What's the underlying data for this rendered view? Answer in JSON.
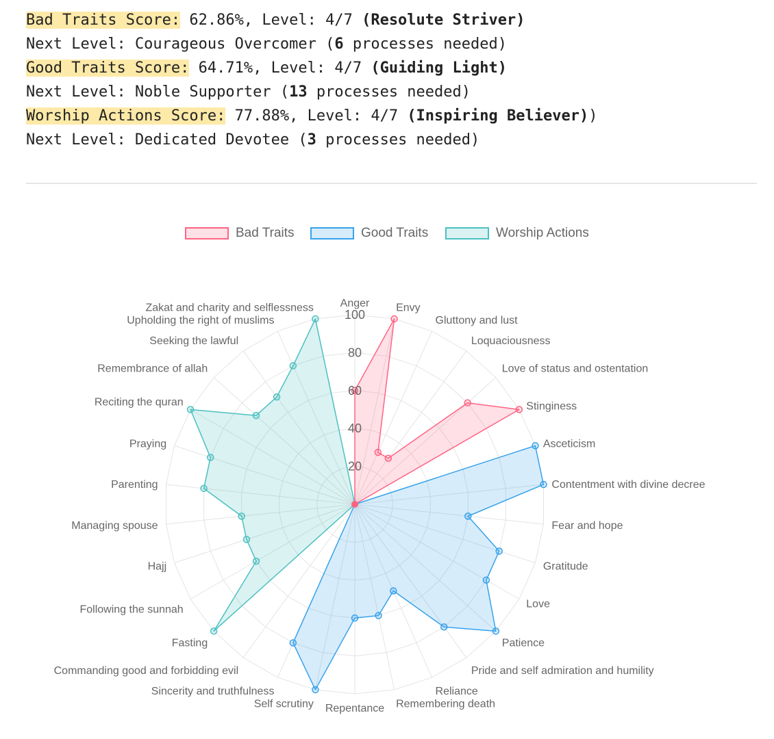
{
  "scores": {
    "bad": {
      "label": "Bad Traits Score:",
      "value": " 62.86%, Level: 4/7 ",
      "level_name": "(Resolute Striver)",
      "suffix": "",
      "next_prefix": "Next Level: Courageous Overcomer (",
      "next_count": "6",
      "next_suffix": " processes needed)"
    },
    "good": {
      "label": "Good Traits Score:",
      "value": " 64.71%, Level: 4/7 ",
      "level_name": "(Guiding Light)",
      "suffix": "",
      "next_prefix": "Next Level: Noble Supporter (",
      "next_count": "13",
      "next_suffix": " processes needed)"
    },
    "worship": {
      "label": "Worship Actions Score:",
      "value": " 77.88%, Level: 4/7 ",
      "level_name": "(Inspiring Believer)",
      "suffix": ")",
      "next_prefix": "Next Level: Dedicated Devotee (",
      "next_count": "3",
      "next_suffix": " processes needed)"
    }
  },
  "colors": {
    "bad": "#ff6384",
    "good": "#36a2eb",
    "worship": "#4bc0c0",
    "highlight": "#fde9a8"
  },
  "chart_data": {
    "type": "radar",
    "legend_position": "top",
    "r_range": [
      0,
      100
    ],
    "r_ticks": [
      20,
      40,
      60,
      80,
      100
    ],
    "labels": [
      "Anger",
      "Envy",
      "Gluttony and lust",
      "Loquaciousness",
      "Love of status and ostentation",
      "Stinginess",
      "Asceticism",
      "Contentment with divine decree",
      "Fear and hope",
      "Gratitude",
      "Love",
      "Patience",
      "Pride and self admiration and humility",
      "Reliance",
      "Remembering death",
      "Repentance",
      "Self scrutiny",
      "Sincerity and truthfulness",
      "Commanding good and forbidding evil",
      "Fasting",
      "Following the sunnah",
      "Hajj",
      "Managing spouse",
      "Parenting",
      "Praying",
      "Reciting the quran",
      "Remembrance of allah",
      "Seeking the lawful",
      "Upholding the right of muslims",
      "Zakat and charity and selflessness"
    ],
    "series": [
      {
        "name": "Bad Traits",
        "values": [
          60,
          100,
          30,
          30,
          80,
          100,
          null,
          null,
          null,
          null,
          null,
          null,
          null,
          null,
          null,
          null,
          null,
          null,
          null,
          null,
          null,
          null,
          null,
          null,
          null,
          null,
          null,
          null,
          null,
          null
        ]
      },
      {
        "name": "Good Traits",
        "values": [
          null,
          null,
          null,
          null,
          null,
          null,
          100,
          100,
          60,
          80,
          80,
          100,
          80,
          50,
          60,
          60,
          100,
          80,
          null,
          null,
          null,
          null,
          null,
          null,
          null,
          null,
          null,
          null,
          null,
          null
        ]
      },
      {
        "name": "Worship Actions",
        "values": [
          null,
          null,
          null,
          null,
          null,
          null,
          null,
          null,
          null,
          null,
          null,
          null,
          null,
          null,
          null,
          null,
          null,
          null,
          null,
          100,
          60,
          60,
          60,
          80,
          80,
          100,
          70,
          70,
          80,
          100
        ]
      }
    ]
  }
}
